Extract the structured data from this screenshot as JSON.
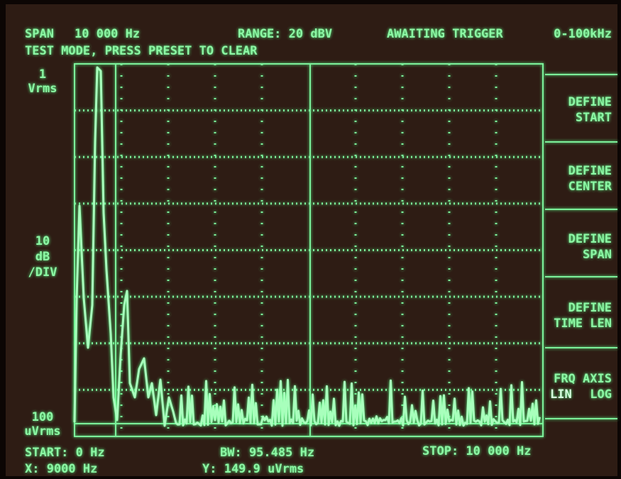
{
  "header": {
    "span": "SPAN",
    "span_value": "10 000 Hz",
    "range": "RANGE: 20 dBV",
    "status": "AWAITING TRIGGER",
    "band": "0-100kHz",
    "message": "TEST MODE, PRESS PRESET TO CLEAR"
  },
  "scale_labels": {
    "top": [
      "1",
      "Vrms"
    ],
    "middle": [
      "10",
      "dB",
      "/DIV"
    ],
    "bottom": [
      "100",
      "uVrms"
    ]
  },
  "softkeys": [
    {
      "lines": [
        "DEFINE",
        "START"
      ]
    },
    {
      "lines": [
        "DEFINE",
        "CENTER"
      ]
    },
    {
      "lines": [
        "DEFINE",
        "SPAN"
      ]
    },
    {
      "lines": [
        "DEFINE",
        "TIME LEN"
      ]
    },
    {
      "lines": [
        "FRQ AXIS"
      ],
      "options": [
        "LIN",
        "LOG"
      ]
    }
  ],
  "footer": {
    "start": "START: 0 Hz",
    "bw": "BW: 95.485 Hz",
    "stop": "STOP: 10 000 Hz",
    "x_marker": "X: 9000 Hz",
    "y_marker": "Y: 149.9 uVrms"
  }
}
